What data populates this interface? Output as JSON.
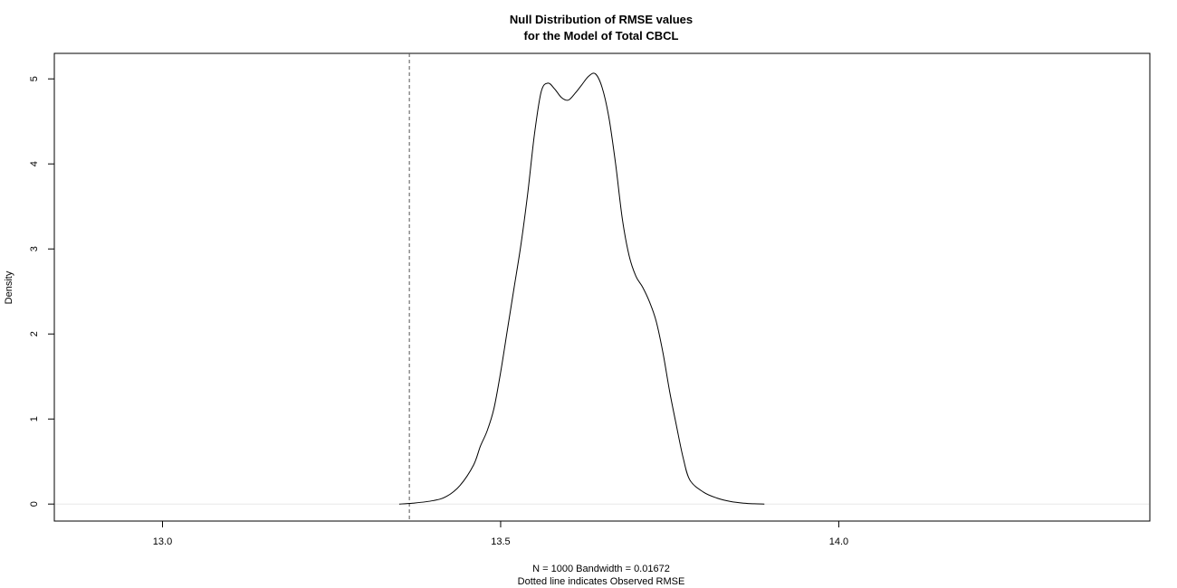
{
  "chart_data": {
    "type": "line",
    "title_line1": "Null Distribution of RMSE values",
    "title_line2": "for the Model of Total CBCL",
    "xlabel_line1": "N = 1000   Bandwidth = 0.01672",
    "xlabel_line2": "Dotted line indicates Observed RMSE",
    "ylabel": "Density",
    "xlim": [
      12.84,
      14.46
    ],
    "ylim": [
      -0.2,
      5.3
    ],
    "x_ticks": [
      13.0,
      13.5,
      14.0
    ],
    "x_tick_labels": [
      "13.0",
      "13.5",
      "14.0"
    ],
    "y_ticks": [
      0,
      1,
      2,
      3,
      4,
      5
    ],
    "y_tick_labels": [
      "0",
      "1",
      "2",
      "3",
      "4",
      "5"
    ],
    "grid": false,
    "zero_line": 0,
    "observed_rmse": 13.365,
    "series": [
      {
        "x": [
          13.35,
          13.37,
          13.4,
          13.42,
          13.44,
          13.46,
          13.47,
          13.48,
          13.49,
          13.5,
          13.51,
          13.52,
          13.53,
          13.54,
          13.55,
          13.56,
          13.57,
          13.58,
          13.59,
          13.6,
          13.61,
          13.62,
          13.63,
          13.64,
          13.65,
          13.66,
          13.67,
          13.68,
          13.69,
          13.7,
          13.71,
          13.72,
          13.73,
          13.74,
          13.75,
          13.76,
          13.77,
          13.78,
          13.8,
          13.82,
          13.84,
          13.86,
          13.875,
          13.89
        ],
        "values": [
          0.0,
          0.01,
          0.04,
          0.09,
          0.22,
          0.46,
          0.68,
          0.86,
          1.12,
          1.55,
          2.05,
          2.55,
          3.05,
          3.65,
          4.35,
          4.85,
          4.95,
          4.88,
          4.78,
          4.75,
          4.83,
          4.93,
          5.03,
          5.06,
          4.9,
          4.55,
          4.0,
          3.35,
          2.92,
          2.68,
          2.55,
          2.38,
          2.15,
          1.78,
          1.32,
          0.92,
          0.54,
          0.28,
          0.14,
          0.07,
          0.03,
          0.01,
          0.003,
          0.0
        ]
      }
    ]
  }
}
